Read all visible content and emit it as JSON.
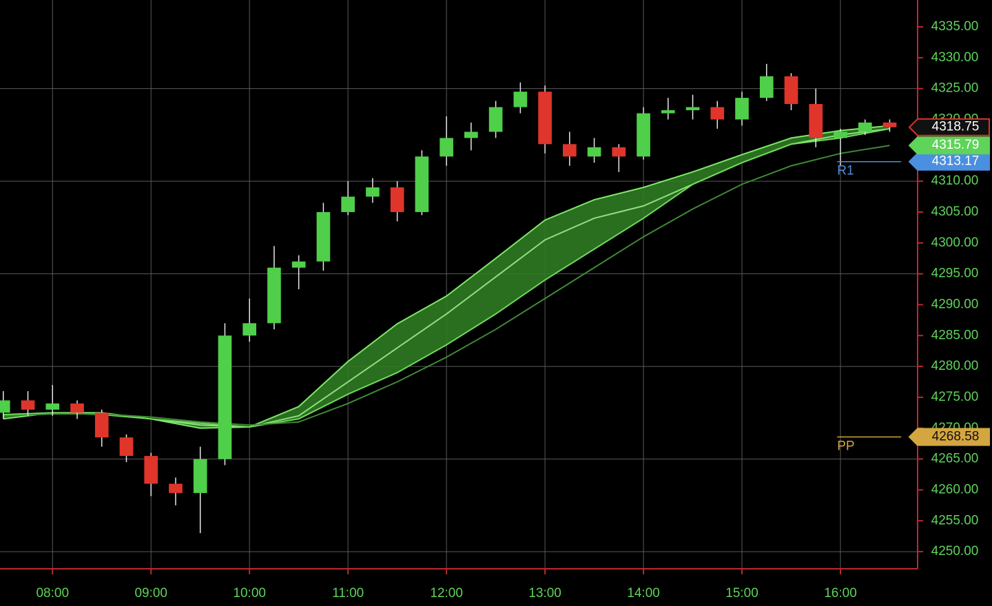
{
  "chart_data": {
    "type": "candlestick",
    "x": [
      "07:30",
      "07:45",
      "08:00",
      "08:15",
      "08:30",
      "08:45",
      "09:00",
      "09:15",
      "09:30",
      "09:45",
      "10:00",
      "10:15",
      "10:30",
      "10:45",
      "11:00",
      "11:15",
      "11:30",
      "11:45",
      "12:00",
      "12:15",
      "12:30",
      "12:45",
      "13:00",
      "13:15",
      "13:30",
      "13:45",
      "14:00",
      "14:15",
      "14:30",
      "14:45",
      "15:00",
      "15:15",
      "15:30",
      "15:45",
      "16:00",
      "16:15",
      "16:30"
    ],
    "open": [
      4272.5,
      4274.5,
      4273,
      4274,
      4272.5,
      4268.5,
      4265.5,
      4261,
      4259.5,
      4265,
      4285,
      4287,
      4296,
      4297,
      4305,
      4307.5,
      4309,
      4305,
      4314,
      4317,
      4318,
      4322,
      4324.5,
      4316,
      4314,
      4315.5,
      4314,
      4321,
      4321.5,
      4322,
      4320,
      4323.5,
      4327,
      4322.5,
      4317,
      4318,
      4319.5
    ],
    "high": [
      4276,
      4276,
      4277,
      4274.5,
      4273,
      4269,
      4266,
      4262,
      4267,
      4287,
      4291,
      4299.5,
      4298,
      4306.5,
      4310,
      4310.5,
      4310,
      4315,
      4320.5,
      4319.5,
      4323,
      4326,
      4325.5,
      4318,
      4317,
      4316,
      4322,
      4323.5,
      4324,
      4323,
      4324.5,
      4329,
      4327.5,
      4325,
      4318.5,
      4320,
      4320
    ],
    "low": [
      4271.5,
      4272,
      4272,
      4271.5,
      4267,
      4264.5,
      4259,
      4257.5,
      4253,
      4264,
      4284,
      4286,
      4292.5,
      4295.5,
      4304.5,
      4306.5,
      4303.5,
      4304.5,
      4312.5,
      4315,
      4317,
      4321,
      4314.5,
      4312.5,
      4313,
      4311.5,
      4313.5,
      4320,
      4320,
      4318.5,
      4319,
      4323,
      4321.5,
      4315.5,
      4312.5,
      4317.5,
      4318
    ],
    "close": [
      4274.5,
      4273,
      4274,
      4272.5,
      4268.5,
      4265.5,
      4261,
      4259.5,
      4265,
      4285,
      4287,
      4296,
      4297,
      4305,
      4307.5,
      4309,
      4305,
      4314,
      4317,
      4318,
      4322,
      4324.5,
      4316,
      4314,
      4315.5,
      4314,
      4321,
      4321.5,
      4322,
      4320,
      4323.5,
      4327,
      4322.5,
      4317,
      4318,
      4319.5,
      4318.75
    ],
    "up_color": "#4fcf4a",
    "down_color": "#e0352b",
    "xlim": [
      "07:28",
      "16:47"
    ],
    "xticks": [
      "08:00",
      "09:00",
      "10:00",
      "11:00",
      "12:00",
      "13:00",
      "14:00",
      "15:00",
      "16:00"
    ],
    "ylim": [
      4247.22,
      4339.35
    ],
    "yticks": [
      {
        "value": 4250,
        "label": "4250.00"
      },
      {
        "value": 4255,
        "label": "4255.00"
      },
      {
        "value": 4260,
        "label": "4260.00"
      },
      {
        "value": 4265,
        "label": "4265.00"
      },
      {
        "value": 4270,
        "label": "4270.00"
      },
      {
        "value": 4275,
        "label": "4275.00"
      },
      {
        "value": 4280,
        "label": "4280.00"
      },
      {
        "value": 4285,
        "label": "4285.00"
      },
      {
        "value": 4290,
        "label": "4290.00"
      },
      {
        "value": 4295,
        "label": "4295.00"
      },
      {
        "value": 4300,
        "label": "4300.00"
      },
      {
        "value": 4305,
        "label": "4305.00"
      },
      {
        "value": 4310,
        "label": "4310.00"
      },
      {
        "value": 4315,
        "label": "4315.00"
      },
      {
        "value": 4320,
        "label": "4320.00"
      },
      {
        "value": 4325,
        "label": "4325.00"
      },
      {
        "value": 4330,
        "label": "4330.00"
      },
      {
        "value": 4335,
        "label": "4335.00"
      }
    ],
    "ygrid": [
      4250,
      4265,
      4280,
      4295,
      4310,
      4325
    ],
    "grid": true,
    "overlay_x": [
      "07:30",
      "08:00",
      "08:30",
      "09:00",
      "09:30",
      "10:00",
      "10:30",
      "11:00",
      "11:30",
      "12:00",
      "12:30",
      "13:00",
      "13:30",
      "14:00",
      "14:30",
      "15:00",
      "15:30",
      "16:00",
      "16:30"
    ],
    "overlays": [
      {
        "color": "#7ee86a",
        "values": [
          4271.5,
          4272.5,
          4272.5,
          4271.5,
          4270,
          4270.2,
          4273.5,
          4280.8,
          4286.9,
          4291.4,
          4297.5,
          4303.7,
          4307,
          4309,
          4311.5,
          4314.3,
          4317,
          4318.2,
          4319
        ]
      },
      {
        "color": "#8fe080",
        "values": [
          4272,
          4272.5,
          4272.3,
          4271.5,
          4270.5,
          4270.2,
          4272,
          4277.5,
          4283,
          4288.5,
          4294.5,
          4300.5,
          4304,
          4306,
          4309.5,
          4313,
          4316,
          4317.5,
          4318.5
        ]
      },
      {
        "color": "#6edc5a",
        "values": [
          4272.2,
          4272.5,
          4272.2,
          4271.5,
          4270.8,
          4270.2,
          4271.5,
          4275.5,
          4279,
          4283.5,
          4288.5,
          4294,
          4299,
          4304,
          4309.5,
          4313,
          4316,
          4317,
          4318.5
        ]
      },
      {
        "color": "#3f8a35",
        "values": [
          4272,
          4272.3,
          4272.3,
          4271.8,
          4271,
          4270.5,
          4271,
          4274,
          4277.5,
          4281.5,
          4286,
          4291,
          4296,
          4301,
          4305.5,
          4309.5,
          4312.5,
          4314.5,
          4315.79
        ]
      }
    ],
    "band_color": "#2f7a22",
    "levels": [
      {
        "label": "R1",
        "value": 4313.17,
        "color": "#4a8fe0",
        "start": "15:58",
        "end": "16:37"
      },
      {
        "label": "PP",
        "value": 4268.58,
        "color": "#d4a640",
        "start": "15:58",
        "end": "16:37"
      }
    ],
    "markers": [
      {
        "value": 4318.75,
        "fill": "#111111",
        "stroke": "#d9342b",
        "text_color": "#ffffff"
      },
      {
        "value": 4315.79,
        "fill": "#5fd35a",
        "stroke": "#5fd35a",
        "text_color": "#ffffff"
      }
    ]
  }
}
